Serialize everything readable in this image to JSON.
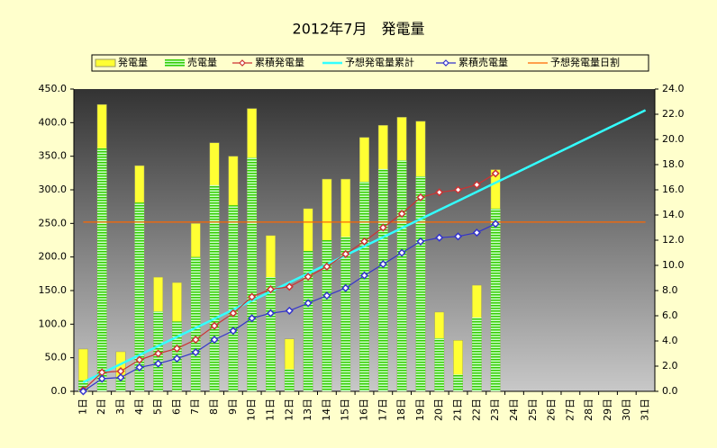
{
  "chart_data": {
    "type": "bar",
    "title": "2012年7月　発電量",
    "categories": [
      "1日",
      "2日",
      "3日",
      "4日",
      "5日",
      "6日",
      "7日",
      "8日",
      "9日",
      "10日",
      "11日",
      "12日",
      "13日",
      "14日",
      "15日",
      "16日",
      "17日",
      "18日",
      "19日",
      "20日",
      "21日",
      "22日",
      "23日",
      "24日",
      "25日",
      "26日",
      "27日",
      "28日",
      "29日",
      "30日",
      "31日"
    ],
    "series": [
      {
        "name": "発電量",
        "type": "bar",
        "color": "#FFFF33",
        "axis": "y",
        "values": [
          63,
          427,
          59,
          336,
          170,
          162,
          250,
          370,
          350,
          421,
          232,
          78,
          272,
          316,
          316,
          378,
          396,
          408,
          402,
          118,
          76,
          158,
          330,
          null,
          null,
          null,
          null,
          null,
          null,
          null,
          null
        ]
      },
      {
        "name": "売電量",
        "type": "bar",
        "color": "#33CC00",
        "axis": "y",
        "values": [
          16,
          362,
          20,
          281,
          119,
          104,
          200,
          307,
          277,
          348,
          170,
          33,
          209,
          225,
          230,
          312,
          331,
          344,
          320,
          79,
          25,
          110,
          272,
          null,
          null,
          null,
          null,
          null,
          null,
          null,
          null
        ]
      },
      {
        "name": "累積発電量",
        "type": "line",
        "marker": "diamond",
        "color": "#CC3333",
        "axis": "y2",
        "values": [
          0.1,
          1.5,
          1.6,
          2.5,
          3.0,
          3.4,
          4.1,
          5.2,
          6.2,
          7.5,
          8.1,
          8.3,
          9.1,
          9.9,
          10.9,
          11.9,
          13.0,
          14.1,
          15.4,
          15.8,
          16.0,
          16.4,
          17.3,
          null,
          null,
          null,
          null,
          null,
          null,
          null,
          null
        ]
      },
      {
        "name": "予想発電量累計",
        "type": "line",
        "marker": null,
        "color": "#33FFFF",
        "axis": "y2",
        "values": [
          0.72,
          1.44,
          2.16,
          2.88,
          3.6,
          4.32,
          5.04,
          5.76,
          6.48,
          7.2,
          7.92,
          8.64,
          9.36,
          10.08,
          10.8,
          11.52,
          12.24,
          12.96,
          13.68,
          14.4,
          15.12,
          15.84,
          16.56,
          17.28,
          18.0,
          18.72,
          19.44,
          20.16,
          20.88,
          21.6,
          22.32
        ]
      },
      {
        "name": "累積売電量",
        "type": "line",
        "marker": "diamond",
        "color": "#3333CC",
        "axis": "y2",
        "values": [
          0.0,
          1.0,
          1.1,
          1.9,
          2.2,
          2.6,
          3.1,
          4.1,
          4.8,
          5.8,
          6.2,
          6.4,
          7.0,
          7.6,
          8.2,
          9.2,
          10.1,
          11.0,
          11.9,
          12.2,
          12.3,
          12.6,
          13.3,
          null,
          null,
          null,
          null,
          null,
          null,
          null,
          null
        ]
      },
      {
        "name": "予想発電量日割",
        "type": "line",
        "marker": null,
        "color": "#FF6600",
        "axis": "y",
        "values": [
          252,
          252,
          252,
          252,
          252,
          252,
          252,
          252,
          252,
          252,
          252,
          252,
          252,
          252,
          252,
          252,
          252,
          252,
          252,
          252,
          252,
          252,
          252,
          252,
          252,
          252,
          252,
          252,
          252,
          252,
          252
        ]
      }
    ],
    "ylim": [
      0,
      450
    ],
    "yticks": [
      {
        "value": 0,
        "label": "0.0"
      },
      {
        "value": 50,
        "label": "50.0"
      },
      {
        "value": 100,
        "label": "100.0"
      },
      {
        "value": 150,
        "label": "150.0"
      },
      {
        "value": 200,
        "label": "200.0"
      },
      {
        "value": 250,
        "label": "250.0"
      },
      {
        "value": 300,
        "label": "300.0"
      },
      {
        "value": 350,
        "label": "350.0"
      },
      {
        "value": 400,
        "label": "400.0"
      },
      {
        "value": 450,
        "label": "450.0"
      }
    ],
    "y2lim": [
      0,
      24
    ],
    "y2ticks": [
      {
        "value": 0,
        "label": "0.0"
      },
      {
        "value": 2,
        "label": "2.0"
      },
      {
        "value": 4,
        "label": "4.0"
      },
      {
        "value": 6,
        "label": "6.0"
      },
      {
        "value": 8,
        "label": "8.0"
      },
      {
        "value": 10,
        "label": "10.0"
      },
      {
        "value": 12,
        "label": "12.0"
      },
      {
        "value": 14,
        "label": "14.0"
      },
      {
        "value": 16,
        "label": "16.0"
      },
      {
        "value": 18,
        "label": "18.0"
      },
      {
        "value": 20,
        "label": "20.0"
      },
      {
        "value": 22,
        "label": "22.0"
      },
      {
        "value": 24,
        "label": "24.0"
      }
    ],
    "grid": false,
    "legend": "top"
  }
}
